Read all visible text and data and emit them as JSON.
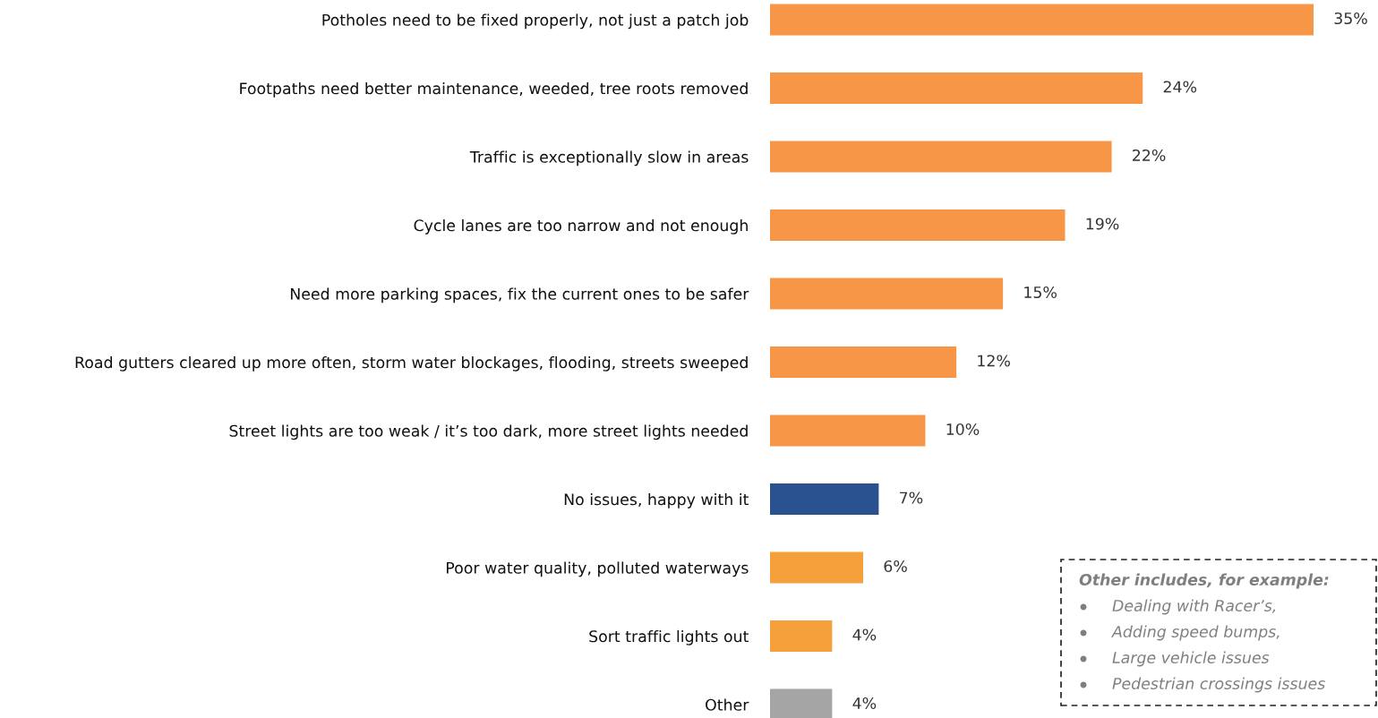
{
  "chart_data": {
    "type": "bar",
    "orientation": "horizontal",
    "categories": [
      "Potholes need to be fixed properly, not just a patch job",
      "Footpaths need better maintenance, weeded, tree roots removed",
      "Traffic is exceptionally slow in areas",
      "Cycle lanes are too narrow and not enough",
      "Need more parking spaces, fix the current ones to be safer",
      "Road gutters cleared up more often, storm water blockages, flooding, streets sweeped",
      "Street lights are too weak / it’s too dark, more street lights needed",
      "No issues, happy with it",
      "Poor water quality, polluted waterways",
      "Sort traffic lights out",
      "Other"
    ],
    "values": [
      35,
      24,
      22,
      19,
      15,
      12,
      10,
      7,
      6,
      4,
      4
    ],
    "colors": [
      "#f79646",
      "#f79646",
      "#f79646",
      "#f79646",
      "#f79646",
      "#f79646",
      "#f79646",
      "#29528f",
      "#f5a03a",
      "#f5a03a",
      "#a5a5a5"
    ],
    "value_labels": [
      "35%",
      "24%",
      "22%",
      "19%",
      "15%",
      "12%",
      "10%",
      "7%",
      "6%",
      "4%",
      "4%"
    ],
    "annotations": [
      "Other includes, for example:",
      "Dealing with Racer’s,",
      "Adding speed bumps,",
      "Large vehicle issues",
      "Pedestrian crossings issues"
    ]
  }
}
